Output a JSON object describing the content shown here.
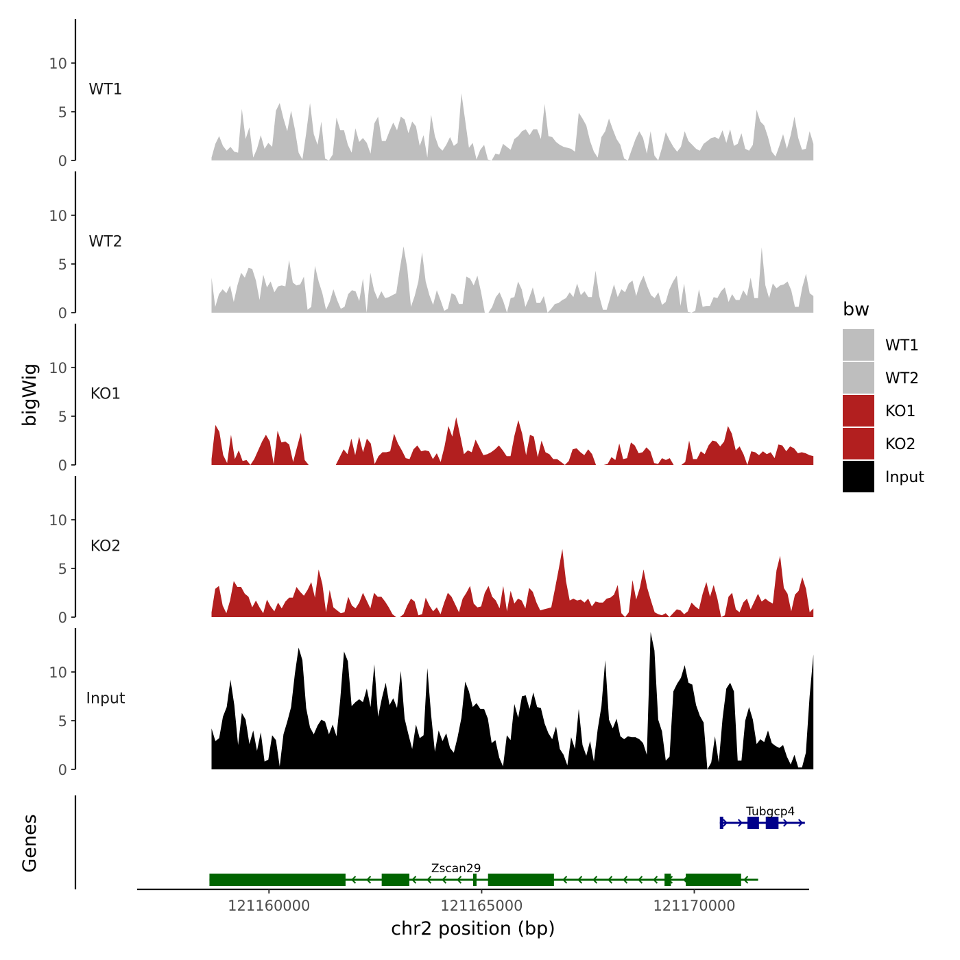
{
  "chart_data": {
    "type": "area",
    "x_axis": {
      "label": "chr2 position (bp)",
      "range": [
        121156900,
        121172700
      ],
      "ticks": [
        121160000,
        121165000,
        121170000
      ],
      "tick_labels": [
        "121160000",
        "121165000",
        "121170000"
      ]
    },
    "y_axis": {
      "label": "bigWig",
      "range": [
        0,
        14.5
      ],
      "ticks": [
        0,
        5,
        10
      ],
      "tick_labels": [
        "0",
        "5",
        "10"
      ]
    },
    "legend": {
      "title": "bw",
      "position": "right",
      "entries": [
        {
          "label": "WT1",
          "color": "#bebebe"
        },
        {
          "label": "WT2",
          "color": "#bebebe"
        },
        {
          "label": "KO1",
          "color": "#b21f1f"
        },
        {
          "label": "KO2",
          "color": "#b21f1f"
        },
        {
          "label": "Input",
          "color": "#000000"
        }
      ]
    },
    "tracks_x": [
      121158650,
      121172800
    ],
    "series": [
      {
        "name": "WT1",
        "color": "#bebebe",
        "values": [
          0.3,
          1.7,
          2.5,
          1.5,
          1.0,
          1.4,
          0.9,
          0.8,
          5.3,
          2.2,
          3.4,
          0.3,
          1.2,
          2.6,
          1.2,
          1.8,
          1.4,
          5.1,
          5.9,
          4.3,
          3.0,
          5.1,
          3.2,
          0.8,
          0.1,
          2.8,
          5.9,
          2.7,
          1.6,
          4.0,
          0.2,
          0.0,
          0.6,
          4.4,
          3.1,
          3.1,
          1.6,
          0.8,
          3.3,
          1.9,
          2.3,
          1.8,
          0.7,
          3.8,
          4.5,
          2.0,
          2.0,
          3.0,
          3.9,
          3.1,
          4.5,
          4.2,
          2.8,
          4.0,
          3.5,
          1.5,
          2.6,
          0.3,
          4.7,
          2.5,
          1.4,
          1.0,
          1.6,
          2.4,
          1.5,
          1.8,
          6.9,
          4.1,
          1.3,
          1.8,
          0.1,
          1.1,
          1.6,
          0.1,
          0.0,
          0.7,
          0.6,
          1.7,
          1.4,
          1.1,
          2.2,
          2.5,
          3.0,
          3.2,
          2.6,
          3.2,
          3.2,
          2.2,
          5.8,
          2.5,
          2.4,
          1.9,
          1.6,
          1.4,
          1.3,
          1.2,
          0.9,
          4.9,
          4.3,
          3.6,
          2.0,
          0.9,
          0.3,
          2.4,
          3.0,
          4.3,
          3.2,
          2.2,
          1.6,
          0.2,
          0.0,
          1.1,
          2.2,
          3.0,
          2.3,
          0.7,
          3.0,
          0.5,
          0.0,
          1.3,
          2.9,
          2.1,
          1.4,
          0.9,
          1.4,
          3.0,
          2.0,
          1.6,
          1.2,
          1.0,
          1.7,
          2.0,
          2.3,
          2.4,
          2.2,
          3.1,
          1.8,
          3.2,
          1.5,
          1.7,
          2.8,
          1.2,
          1.0,
          1.6,
          5.2,
          4.0,
          3.6,
          2.4,
          0.9,
          0.4,
          1.5,
          2.7,
          1.2,
          2.6,
          4.5,
          2.3,
          1.1,
          1.2,
          3.0,
          1.7
        ]
      },
      {
        "name": "WT2",
        "color": "#bebebe",
        "values": [
          3.6,
          0.6,
          1.9,
          2.4,
          2.0,
          2.8,
          1.1,
          2.8,
          4.1,
          3.6,
          4.6,
          4.5,
          3.3,
          1.3,
          3.9,
          2.6,
          3.2,
          2.1,
          2.7,
          2.8,
          2.7,
          5.4,
          3.1,
          2.8,
          2.9,
          3.7,
          0.3,
          0.6,
          4.8,
          3.2,
          2.0,
          0.3,
          1.1,
          2.4,
          1.3,
          0.4,
          0.6,
          1.9,
          2.3,
          2.2,
          1.2,
          3.5,
          0.0,
          4.1,
          2.3,
          1.4,
          2.2,
          1.5,
          1.6,
          1.8,
          2.0,
          4.5,
          6.8,
          4.6,
          0.6,
          1.7,
          3.2,
          6.2,
          3.2,
          1.8,
          0.8,
          2.3,
          1.3,
          0.2,
          0.4,
          2.0,
          1.8,
          0.9,
          0.9,
          3.7,
          3.5,
          2.8,
          3.8,
          2.1,
          0.0,
          0.0,
          0.6,
          1.6,
          2.1,
          1.2,
          0.0,
          1.5,
          1.6,
          3.2,
          2.4,
          0.6,
          1.5,
          2.6,
          1.0,
          1.0,
          1.7,
          0.0,
          0.4,
          0.9,
          1.0,
          1.3,
          1.5,
          2.1,
          1.6,
          3.0,
          1.8,
          2.2,
          1.6,
          1.6,
          4.3,
          1.7,
          0.3,
          0.3,
          1.6,
          2.9,
          1.6,
          2.4,
          2.1,
          3.0,
          3.3,
          1.7,
          3.0,
          3.8,
          2.7,
          1.8,
          1.5,
          2.1,
          0.8,
          1.1,
          2.4,
          3.2,
          3.8,
          0.7,
          3.0,
          0.1,
          0.0,
          0.2,
          2.4,
          0.6,
          0.7,
          0.7,
          1.6,
          1.5,
          2.2,
          2.6,
          1.1,
          1.9,
          1.3,
          1.3,
          2.3,
          1.7,
          3.6,
          1.5,
          1.5,
          6.7,
          2.8,
          1.5,
          3.0,
          2.5,
          2.8,
          2.9,
          3.2,
          2.3,
          0.6,
          0.6,
          2.6,
          4.0,
          2.0,
          1.7
        ]
      },
      {
        "name": "KO1",
        "color": "#b21f1f",
        "values": [
          0.6,
          4.1,
          3.4,
          1.0,
          0.2,
          3.1,
          0.6,
          1.5,
          0.4,
          0.5,
          0.0,
          0.6,
          1.5,
          2.4,
          3.1,
          2.4,
          0.1,
          3.5,
          2.3,
          2.4,
          2.1,
          0.3,
          1.8,
          3.3,
          0.5,
          0.0,
          0.0,
          0.0,
          0.0,
          0.0,
          0.0,
          0.0,
          0.0,
          0.8,
          1.6,
          1.1,
          2.7,
          1.0,
          2.9,
          1.3,
          2.7,
          2.2,
          0.1,
          0.9,
          1.3,
          1.3,
          1.4,
          3.2,
          2.2,
          1.5,
          0.7,
          0.6,
          1.6,
          2.0,
          1.4,
          1.5,
          1.4,
          0.6,
          1.2,
          0.3,
          1.9,
          4.0,
          2.9,
          4.9,
          3.1,
          1.1,
          1.5,
          1.3,
          2.6,
          1.8,
          1.0,
          1.1,
          1.3,
          1.6,
          2.0,
          1.5,
          0.9,
          0.9,
          3.0,
          4.6,
          3.2,
          1.0,
          3.1,
          2.9,
          0.8,
          2.5,
          1.3,
          1.1,
          0.6,
          0.6,
          0.3,
          0.0,
          0.4,
          1.6,
          1.7,
          1.3,
          1.0,
          1.6,
          1.1,
          0.0,
          0.0,
          0.0,
          0.1,
          0.8,
          0.5,
          2.2,
          0.6,
          0.7,
          2.3,
          2.0,
          1.2,
          1.3,
          1.8,
          1.4,
          0.2,
          0.1,
          0.7,
          0.5,
          0.7,
          0.0,
          0.0,
          0.0,
          0.3,
          2.5,
          0.6,
          0.6,
          1.4,
          1.1,
          2.0,
          2.5,
          2.4,
          1.9,
          2.4,
          4.0,
          3.2,
          1.5,
          1.9,
          1.1,
          0.0,
          1.4,
          1.3,
          1.0,
          1.4,
          1.1,
          1.3,
          0.7,
          2.1,
          2.0,
          1.4,
          1.9,
          1.7,
          1.2,
          1.3,
          1.2,
          1.0,
          0.9
        ]
      },
      {
        "name": "KO2",
        "color": "#b21f1f",
        "values": [
          0.5,
          2.9,
          3.2,
          1.2,
          0.4,
          1.7,
          3.7,
          3.1,
          3.1,
          2.4,
          2.1,
          1.0,
          1.7,
          1.0,
          0.4,
          1.8,
          1.1,
          0.6,
          1.5,
          0.9,
          1.6,
          2.0,
          2.0,
          3.1,
          2.6,
          2.2,
          2.8,
          3.6,
          2.0,
          4.9,
          3.4,
          0.5,
          2.8,
          1.0,
          0.7,
          0.4,
          0.5,
          2.1,
          1.2,
          0.9,
          1.5,
          2.5,
          1.7,
          0.9,
          2.5,
          2.1,
          2.1,
          1.6,
          1.0,
          0.3,
          0.0,
          0.0,
          0.3,
          1.2,
          1.9,
          1.6,
          0.2,
          0.3,
          2.0,
          1.2,
          0.6,
          1.0,
          0.3,
          1.5,
          2.5,
          2.1,
          1.3,
          0.5,
          1.9,
          2.5,
          3.2,
          1.4,
          1.0,
          1.1,
          2.5,
          3.2,
          2.1,
          1.7,
          0.9,
          3.2,
          0.6,
          2.7,
          1.4,
          1.9,
          1.7,
          0.9,
          3.0,
          2.6,
          1.5,
          0.7,
          0.8,
          0.9,
          1.0,
          2.9,
          4.9,
          7.0,
          3.7,
          1.7,
          1.9,
          1.7,
          1.8,
          1.5,
          1.9,
          1.1,
          1.6,
          1.5,
          1.5,
          1.9,
          2.0,
          2.3,
          3.3,
          0.4,
          0.0,
          0.5,
          3.8,
          1.8,
          3.0,
          4.9,
          3.0,
          1.7,
          0.5,
          0.3,
          0.2,
          0.4,
          0.0,
          0.4,
          0.8,
          0.7,
          0.3,
          0.6,
          1.5,
          1.1,
          0.8,
          2.4,
          3.6,
          2.1,
          3.3,
          1.9,
          0.0,
          0.2,
          2.1,
          2.5,
          0.8,
          0.5,
          1.5,
          1.9,
          0.8,
          1.6,
          2.4,
          1.6,
          1.9,
          1.6,
          1.4,
          4.8,
          6.3,
          3.0,
          2.4,
          0.6,
          2.3,
          2.7,
          4.1,
          2.9,
          0.5,
          0.9
        ]
      },
      {
        "name": "Input",
        "color": "#000000",
        "values": [
          4.2,
          2.9,
          3.2,
          5.4,
          6.4,
          9.2,
          6.6,
          2.5,
          5.8,
          5.1,
          2.6,
          4.0,
          1.9,
          3.8,
          0.8,
          1.0,
          3.5,
          3.0,
          0.3,
          3.6,
          4.9,
          6.4,
          9.8,
          12.5,
          11.2,
          6.3,
          4.3,
          3.6,
          4.5,
          5.1,
          4.9,
          3.6,
          4.6,
          3.4,
          7.2,
          12.1,
          11.1,
          6.5,
          6.9,
          7.2,
          6.9,
          8.3,
          6.4,
          10.8,
          5.4,
          7.3,
          8.9,
          6.6,
          7.3,
          6.3,
          10.1,
          5.2,
          3.6,
          2.1,
          4.6,
          3.2,
          3.5,
          10.4,
          5.6,
          1.8,
          4.0,
          2.9,
          3.7,
          2.2,
          1.7,
          3.3,
          5.3,
          9.0,
          8.0,
          6.4,
          6.8,
          6.2,
          6.2,
          5.2,
          2.7,
          3.0,
          1.2,
          0.3,
          3.5,
          3.0,
          6.7,
          5.3,
          7.5,
          7.6,
          6.2,
          7.9,
          6.4,
          6.3,
          4.7,
          3.7,
          3.1,
          4.4,
          2.1,
          1.5,
          0.4,
          3.3,
          2.1,
          6.2,
          2.5,
          1.4,
          2.9,
          0.8,
          4.1,
          6.5,
          11.2,
          5.1,
          4.2,
          5.2,
          3.4,
          3.1,
          3.4,
          3.3,
          3.3,
          3.1,
          2.7,
          1.5,
          14.1,
          12.2,
          5.1,
          3.9,
          0.9,
          1.3,
          8.0,
          8.8,
          9.4,
          10.7,
          8.9,
          8.7,
          6.6,
          5.5,
          4.8,
          0.0,
          0.7,
          3.4,
          0.7,
          5.2,
          8.3,
          8.9,
          8.0,
          0.9,
          0.9,
          5.0,
          6.4,
          5.1,
          2.6,
          3.1,
          2.8,
          4.0,
          2.7,
          2.4,
          2.2,
          2.5,
          1.3,
          0.5,
          1.5,
          0.2,
          0.2,
          1.7,
          7.5,
          11.8
        ]
      }
    ],
    "genes": {
      "label": "Genes",
      "items": [
        {
          "name": "Tubgcp4",
          "strand": "+",
          "start": 121170600,
          "end": 121172600,
          "color": "#00008b",
          "exons": [
            [
              121170600,
              121170680
            ],
            [
              121171250,
              121171520
            ],
            [
              121171680,
              121171980
            ]
          ]
        },
        {
          "name": "Zscan29",
          "strand": "-",
          "start": 121158600,
          "end": 121171500,
          "color": "#006400",
          "exons": [
            [
              121158600,
              121161800
            ],
            [
              121162650,
              121163300
            ],
            [
              121164800,
              121164880
            ],
            [
              121165150,
              121166700
            ],
            [
              121169300,
              121169450
            ],
            [
              121169800,
              121171100
            ]
          ]
        }
      ]
    }
  }
}
